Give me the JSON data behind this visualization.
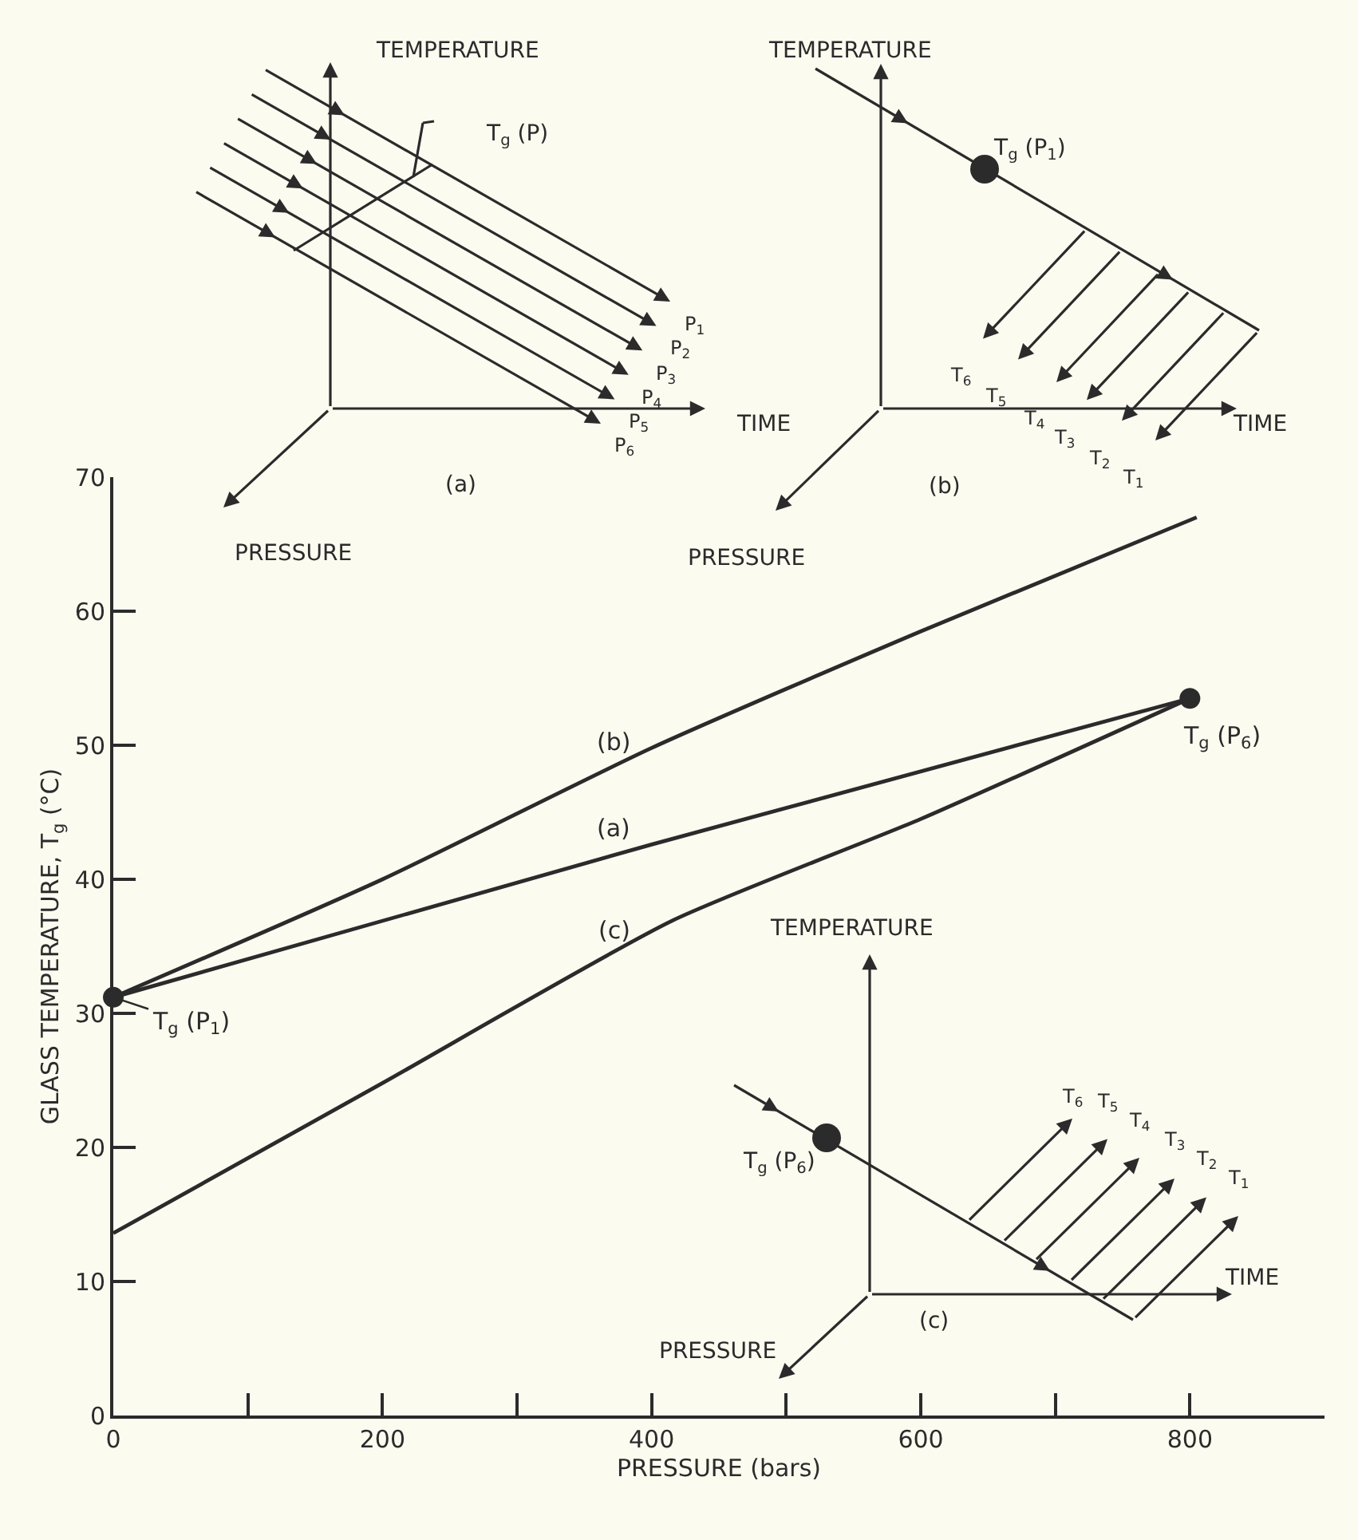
{
  "chart_data": {
    "type": "line",
    "xlabel": "PRESSURE (bars)",
    "ylabel": "GLASS TEMPERATURE, T$_{g}$ (°C)",
    "xlim": [
      0,
      900
    ],
    "ylim": [
      0,
      70
    ],
    "xticks": [
      0,
      {
        "value": 100,
        "label": null
      },
      200,
      {
        "value": 300,
        "label": null
      },
      400,
      {
        "value": 500,
        "label": null
      },
      600,
      {
        "value": 700,
        "label": null
      },
      800
    ],
    "yticks": [
      0,
      10,
      20,
      30,
      40,
      50,
      60,
      70
    ],
    "series": [
      {
        "name": "(b)",
        "color": "#2b2b2b",
        "x": [
          0,
          200,
          400,
          600,
          805
        ],
        "values": [
          31.2,
          40.0,
          49.8,
          58.5,
          67.0
        ]
      },
      {
        "name": "(a)",
        "color": "#2b2b2b",
        "x": [
          0,
          400,
          800
        ],
        "values": [
          31.2,
          42.6,
          53.5
        ]
      },
      {
        "name": "(c)",
        "color": "#2b2b2b",
        "x": [
          0,
          200,
          415,
          600,
          800
        ],
        "values": [
          13.6,
          24.8,
          36.9,
          44.5,
          53.5
        ]
      },
      {
        "type": "scatter",
        "marker": "circle",
        "color": "#2b2b2b",
        "x": [
          0,
          800
        ],
        "values": [
          31.2,
          53.5
        ]
      }
    ],
    "annotations": [
      {
        "text": "T$_{g}$ (P$_{1}$)",
        "x": 0,
        "y": 31.2
      },
      {
        "text": "T$_{g}$ (P$_{6}$)",
        "x": 800,
        "y": 53.5
      },
      "TEMPERATURE",
      "TIME",
      "PRESSURE",
      "(a)",
      "T$_{g}$ (P)",
      "P$_{1}$",
      "P$_{2}$",
      "P$_{3}$",
      "P$_{4}$",
      "P$_{5}$",
      "P$_{6}$",
      "TEMPERATURE",
      "TIME",
      "PRESSURE",
      "(b)",
      "T$_{g}$ (P$_{1}$)",
      "T$_{6}$",
      "T$_{5}$",
      "T$_{4}$",
      "T$_{3}$",
      "T$_{2}$",
      "T$_{1}$",
      "TEMPERATURE",
      "TIME",
      "PRESSURE",
      "(c)",
      "T$_{g}$ (P$_{6}$)",
      "T$_{6}$",
      "T$_{5}$",
      "T$_{4}$",
      "T$_{3}$",
      "T$_{2}$",
      "T$_{1}$"
    ]
  }
}
